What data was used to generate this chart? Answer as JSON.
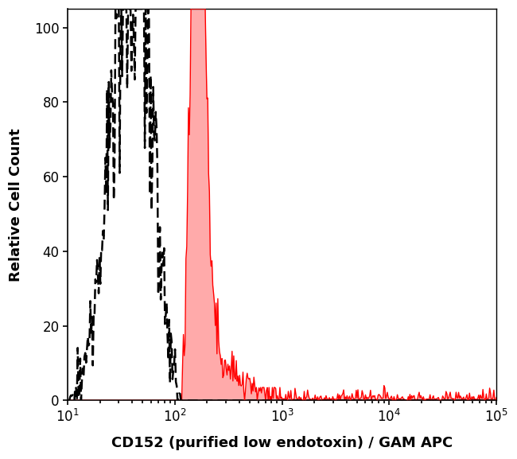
{
  "xlabel": "CD152 (purified low endotoxin) / GAM APC",
  "ylabel": "Relative Cell Count",
  "xlim_log": [
    10,
    100000
  ],
  "ylim": [
    0,
    105
  ],
  "yticks": [
    0,
    20,
    40,
    60,
    80,
    100
  ],
  "xticks_log": [
    10,
    100,
    1000,
    10000,
    100000
  ],
  "background_color": "#ffffff",
  "dashed_color": "#000000",
  "red_fill_color": "#ffaaaa",
  "red_line_color": "#ff0000",
  "dashed_peak_log": 1.62,
  "dashed_sigma_log": 0.16,
  "red_peak_log": 2.2,
  "red_sigma_log": 0.09
}
